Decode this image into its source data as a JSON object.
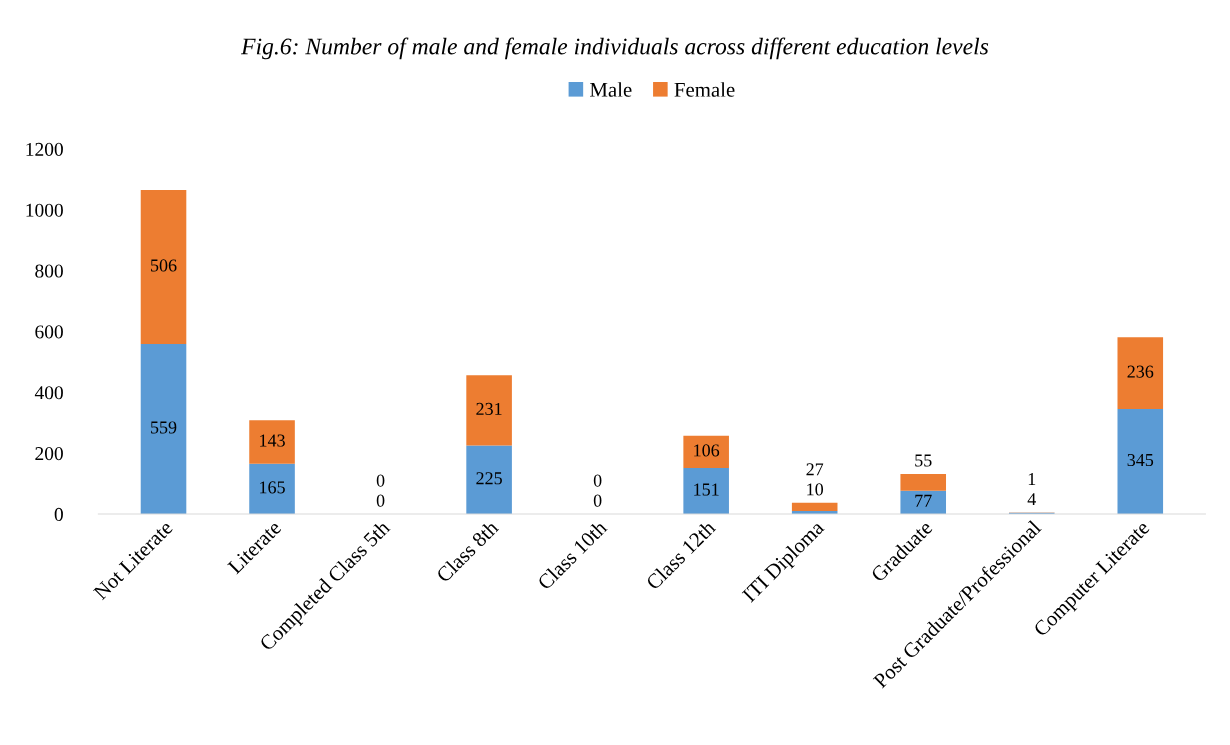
{
  "chart_data": {
    "type": "bar",
    "stacked": true,
    "title": "Fig.6: Number of male and female individuals across different education levels",
    "categories": [
      "Not Literate",
      "Literate",
      "Completed Class 5th",
      "Class 8th",
      "Class 10th",
      "Class 12th",
      "ITI Diploma",
      "Graduate",
      "Post Graduate/Professional",
      "Computer Literate"
    ],
    "series": [
      {
        "name": "Male",
        "color": "#5b9bd5",
        "values": [
          559,
          165,
          0,
          225,
          0,
          151,
          10,
          77,
          4,
          345
        ]
      },
      {
        "name": "Female",
        "color": "#ed7d31",
        "values": [
          506,
          143,
          0,
          231,
          0,
          106,
          27,
          55,
          1,
          236
        ]
      }
    ],
    "ylim": [
      0,
      1200
    ],
    "yticks": [
      0,
      200,
      400,
      600,
      800,
      1000,
      1200
    ],
    "grid": false,
    "legend": "top",
    "data_labels": true
  }
}
